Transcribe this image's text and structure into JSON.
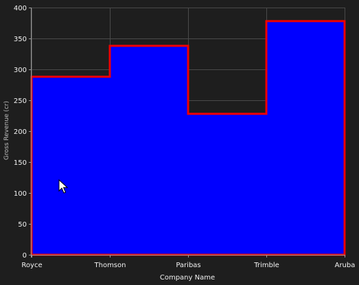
{
  "chart_data": {
    "type": "area",
    "subtype": "step",
    "categories": [
      "Royce",
      "Thomson",
      "Paribas",
      "Trimble",
      "Aruba"
    ],
    "values": [
      288,
      338,
      228,
      378,
      378
    ],
    "xlabel": "Company Name",
    "ylabel": "Gross Revenue (cr)",
    "ylim": [
      0,
      400
    ],
    "yticks": [
      0,
      50,
      100,
      150,
      200,
      250,
      300,
      350,
      400
    ],
    "grid": true,
    "legend": "none",
    "colors": {
      "background": "#1e1e1e",
      "fill": "#0000ff",
      "stroke": "#ee0000",
      "grid": "#4a4a4a",
      "axis": "#9a9a9a",
      "text": "#f2f2f2"
    }
  },
  "cursor": {
    "icon": "mouse-pointer-icon"
  }
}
